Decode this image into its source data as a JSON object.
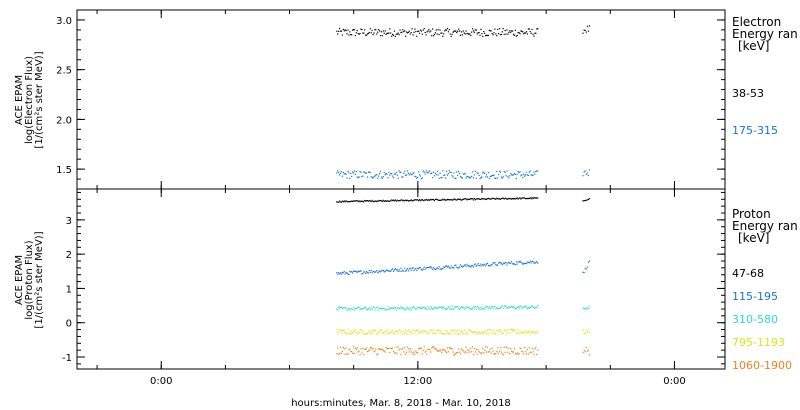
{
  "chart_data": [
    {
      "type": "scatter",
      "title": "",
      "ylabel": [
        "ACE EPAM",
        "log(Electron Flux)",
        "[1/(cm²s ster MeV)]"
      ],
      "ylim": [
        1.3,
        3.1
      ],
      "yticks": [
        1.5,
        2.0,
        2.5,
        3.0
      ],
      "ytick_labels": [
        "1.5",
        "2.0",
        "2.5",
        "3.0"
      ],
      "legend_title": [
        "Electron",
        "Energy ran",
        "[keV]"
      ],
      "series": [
        {
          "name": "38-53",
          "color": "#000000",
          "level": 2.88,
          "jitter": 0.04,
          "segments": [
            {
              "start": 0.4,
              "end": 0.71,
              "offset": 0.0
            },
            {
              "start": 0.78,
              "end": 0.79,
              "offset": 0.03
            }
          ]
        },
        {
          "name": "175-315",
          "color": "#1a73c9",
          "level": 1.45,
          "jitter": 0.04,
          "segments": [
            {
              "start": 0.4,
              "end": 0.71,
              "offset": 0.0
            },
            {
              "start": 0.78,
              "end": 0.79,
              "offset": 0.02
            }
          ]
        }
      ]
    },
    {
      "type": "scatter",
      "title": "",
      "ylabel": [
        "ACE EPAM",
        "log(Proton Flux)",
        "[1/(cm²s ster MeV)]"
      ],
      "ylim": [
        -1.35,
        3.9
      ],
      "yticks": [
        -1,
        0,
        1,
        2,
        3
      ],
      "ytick_labels": [
        "-1",
        "0",
        "1",
        "2",
        "3"
      ],
      "legend_title": [
        "Proton",
        "Energy ran",
        "[keV]"
      ],
      "series": [
        {
          "name": "47-68",
          "color": "#000000",
          "level": 3.55,
          "trend": 0.1,
          "jitter": 0.02,
          "segments": [
            {
              "start": 0.4,
              "end": 0.71,
              "offset": 0.0
            },
            {
              "start": 0.78,
              "end": 0.79,
              "offset": 0.0
            }
          ]
        },
        {
          "name": "115-195",
          "color": "#1a73c9",
          "level": 1.45,
          "trend": 0.35,
          "jitter": 0.05,
          "segments": [
            {
              "start": 0.4,
              "end": 0.71,
              "offset": 0.0
            },
            {
              "start": 0.78,
              "end": 0.79,
              "offset": 0.0
            }
          ]
        },
        {
          "name": "310-580",
          "color": "#30d8cf",
          "level": 0.42,
          "trend": 0.05,
          "jitter": 0.05,
          "segments": [
            {
              "start": 0.4,
              "end": 0.71,
              "offset": 0.0
            },
            {
              "start": 0.78,
              "end": 0.79,
              "offset": 0.0
            }
          ]
        },
        {
          "name": "795-1193",
          "color": "#d8e61e",
          "level": -0.25,
          "trend": 0.0,
          "jitter": 0.07,
          "segments": [
            {
              "start": 0.4,
              "end": 0.71,
              "offset": 0.0
            },
            {
              "start": 0.78,
              "end": 0.79,
              "offset": 0.0
            }
          ]
        },
        {
          "name": "1060-1900",
          "color": "#e8821e",
          "level": -0.8,
          "trend": 0.0,
          "jitter": 0.12,
          "segments": [
            {
              "start": 0.4,
              "end": 0.71,
              "offset": 0.0
            },
            {
              "start": 0.78,
              "end": 0.79,
              "offset": 0.0
            }
          ]
        }
      ]
    }
  ],
  "x_axis": {
    "xlim": [
      0,
      1
    ],
    "ticks": [
      {
        "pos": 0.13,
        "label": "0:00"
      },
      {
        "pos": 0.526,
        "label": "12:00"
      },
      {
        "pos": 0.922,
        "label": "0:00"
      }
    ],
    "xlabel": "hours:minutes, Mar.  8, 2018 - Mar. 10, 2018"
  }
}
